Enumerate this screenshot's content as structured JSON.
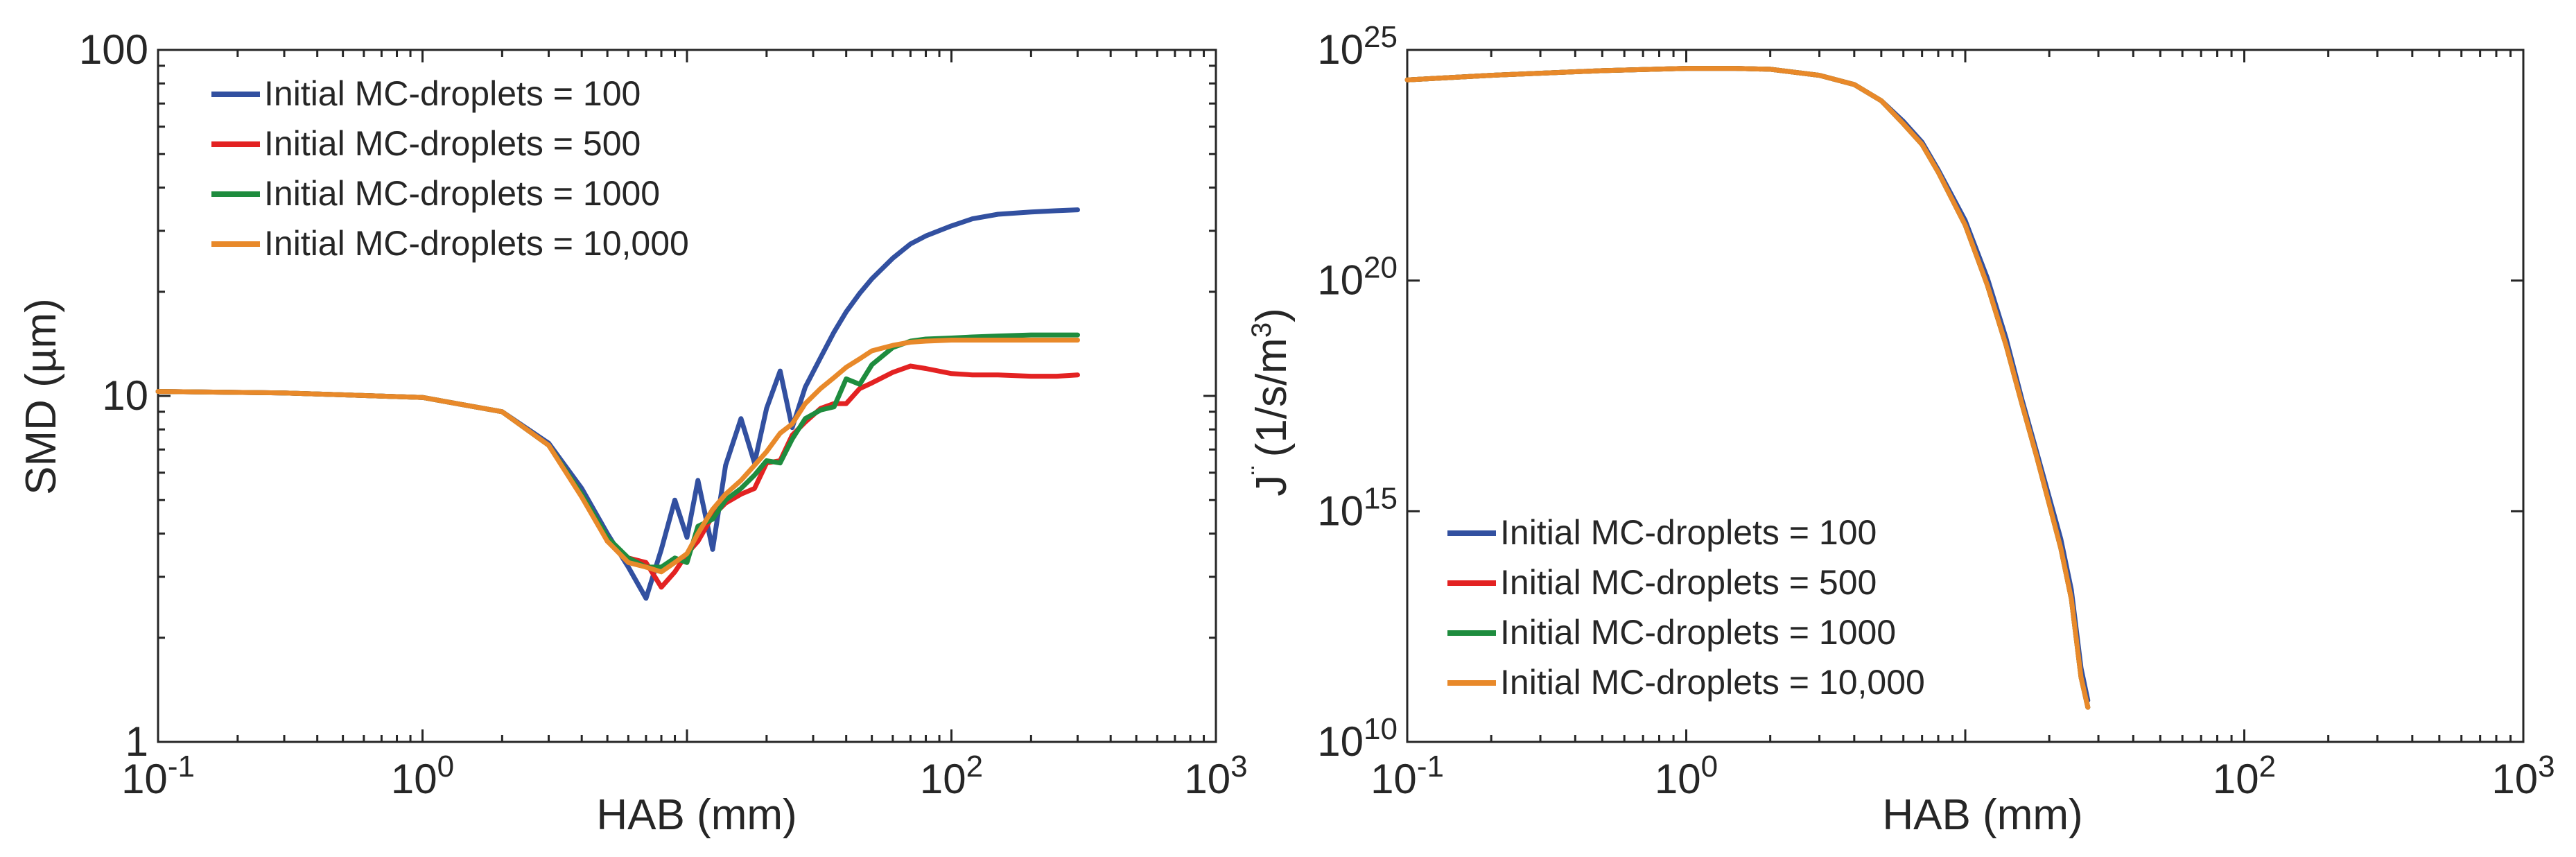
{
  "chart_data": [
    {
      "type": "line",
      "panel": "left",
      "xscale": "log",
      "yscale": "log",
      "xlim": [
        0.1,
        1000
      ],
      "ylim": [
        1,
        100
      ],
      "xlabel": "HAB (mm)",
      "ylabel": "SMD (µm)",
      "xticks": [
        {
          "value": 0.1,
          "base": "10",
          "exp": "-1"
        },
        {
          "value": 1,
          "base": "10",
          "exp": "0"
        },
        {
          "value": 100,
          "base": "10",
          "exp": "2"
        },
        {
          "value": 1000,
          "base": "10",
          "exp": "3"
        }
      ],
      "yticks": [
        {
          "value": 1,
          "label": "1"
        },
        {
          "value": 10,
          "label": "10"
        },
        {
          "value": 100,
          "label": "100"
        }
      ],
      "legend_position": "top-left",
      "series": [
        {
          "name": "Initial MC-droplets = 100",
          "color": "#3250a0",
          "x": [
            0.1,
            0.3,
            1,
            2,
            3,
            4,
            5,
            6,
            7,
            8,
            9,
            10,
            11,
            12.5,
            14,
            16,
            18,
            20,
            22.5,
            25,
            28,
            32,
            36,
            40,
            45,
            50,
            60,
            70,
            80,
            100,
            120,
            150,
            200,
            250,
            300
          ],
          "y": [
            10.3,
            10.2,
            9.9,
            9.0,
            7.3,
            5.4,
            4.0,
            3.2,
            2.6,
            3.6,
            5.0,
            3.9,
            5.7,
            3.6,
            6.3,
            8.6,
            6.4,
            9.2,
            11.8,
            8.1,
            10.6,
            12.9,
            15.3,
            17.5,
            19.8,
            21.8,
            25.0,
            27.5,
            29.0,
            31.0,
            32.5,
            33.5,
            34.0,
            34.3,
            34.5
          ]
        },
        {
          "name": "Initial MC-droplets = 500",
          "color": "#e32222",
          "x": [
            0.1,
            0.3,
            1,
            2,
            3,
            4,
            5,
            6,
            7,
            8,
            9,
            10,
            11,
            12.5,
            14,
            16,
            18,
            20,
            22.5,
            25,
            28,
            32,
            36,
            40,
            45,
            50,
            60,
            70,
            80,
            100,
            120,
            150,
            200,
            250,
            300
          ],
          "y": [
            10.3,
            10.2,
            9.9,
            9.0,
            7.2,
            5.2,
            3.8,
            3.4,
            3.3,
            2.8,
            3.1,
            3.5,
            3.8,
            4.5,
            4.9,
            5.2,
            5.4,
            6.4,
            6.5,
            7.7,
            8.4,
            9.2,
            9.5,
            9.5,
            10.5,
            10.9,
            11.7,
            12.2,
            12.0,
            11.6,
            11.5,
            11.5,
            11.4,
            11.4,
            11.5
          ]
        },
        {
          "name": "Initial MC-droplets = 1000",
          "color": "#1e8c3e",
          "x": [
            0.1,
            0.3,
            1,
            2,
            3,
            4,
            5,
            6,
            7,
            8,
            9,
            10,
            11,
            12.5,
            14,
            16,
            18,
            20,
            22.5,
            25,
            28,
            32,
            36,
            40,
            45,
            50,
            60,
            70,
            80,
            100,
            120,
            150,
            200,
            250,
            300
          ],
          "y": [
            10.3,
            10.2,
            9.9,
            9.0,
            7.2,
            5.2,
            3.9,
            3.4,
            3.2,
            3.2,
            3.4,
            3.3,
            4.2,
            4.4,
            5.0,
            5.4,
            5.9,
            6.5,
            6.4,
            7.5,
            8.6,
            9.1,
            9.3,
            11.2,
            10.8,
            12.3,
            13.8,
            14.4,
            14.6,
            14.7,
            14.8,
            14.9,
            15.0,
            15.0,
            15.0
          ]
        },
        {
          "name": "Initial MC-droplets = 10,000",
          "color": "#e8892a",
          "x": [
            0.1,
            0.3,
            1,
            2,
            3,
            4,
            5,
            6,
            7,
            8,
            9,
            10,
            11,
            12.5,
            14,
            16,
            18,
            20,
            22.5,
            25,
            28,
            32,
            36,
            40,
            45,
            50,
            60,
            70,
            80,
            100,
            120,
            150,
            200,
            250,
            300
          ],
          "y": [
            10.3,
            10.2,
            9.9,
            9.0,
            7.2,
            5.1,
            3.8,
            3.3,
            3.2,
            3.1,
            3.3,
            3.5,
            4.0,
            4.7,
            5.2,
            5.7,
            6.3,
            6.9,
            7.8,
            8.3,
            9.5,
            10.5,
            11.3,
            12.1,
            12.8,
            13.5,
            14.0,
            14.3,
            14.4,
            14.5,
            14.5,
            14.5,
            14.5,
            14.5,
            14.5
          ]
        }
      ]
    },
    {
      "type": "line",
      "panel": "right",
      "xscale": "log",
      "yscale": "log",
      "xlim": [
        0.1,
        1000
      ],
      "ylim": [
        10000000000.0,
        1e+25
      ],
      "xlabel": "HAB (mm)",
      "ylabel_base": "J",
      "ylabel_dots": "¨",
      "ylabel_units": "(1/s/m",
      "ylabel_units_exp": "3",
      "ylabel_units_close": ")",
      "xticks": [
        {
          "value": 0.1,
          "base": "10",
          "exp": "-1"
        },
        {
          "value": 1,
          "base": "10",
          "exp": "0"
        },
        {
          "value": 100,
          "base": "10",
          "exp": "2"
        },
        {
          "value": 1000,
          "base": "10",
          "exp": "3"
        }
      ],
      "yticks": [
        {
          "value": 10000000000.0,
          "base": "10",
          "exp": "10"
        },
        {
          "value": 1000000000000000.0,
          "base": "10",
          "exp": "15"
        },
        {
          "value": 1e+20,
          "base": "10",
          "exp": "20"
        },
        {
          "value": 1e+25,
          "base": "10",
          "exp": "25"
        }
      ],
      "legend_position": "bottom-left",
      "series": [
        {
          "name": "Initial MC-droplets = 100",
          "color": "#3250a0",
          "x": [
            0.1,
            0.2,
            0.5,
            1,
            1.5,
            2,
            3,
            4,
            5,
            6,
            7,
            8,
            10,
            12,
            14,
            16,
            18,
            20,
            22,
            24,
            26,
            27.5
          ],
          "y": [
            24.35,
            24.45,
            24.55,
            24.6,
            24.6,
            24.58,
            24.45,
            24.25,
            23.9,
            23.45,
            23.0,
            22.4,
            21.3,
            20.05,
            18.75,
            17.4,
            16.3,
            15.3,
            14.4,
            13.3,
            11.6,
            10.9
          ]
        },
        {
          "name": "Initial MC-droplets = 500",
          "color": "#e32222",
          "x": [
            0.1,
            0.2,
            0.5,
            1,
            1.5,
            2,
            3,
            4,
            5,
            6,
            7,
            8,
            10,
            12,
            14,
            16,
            18,
            20,
            22,
            24,
            26,
            27.5
          ],
          "y": [
            24.35,
            24.45,
            24.55,
            24.6,
            24.6,
            24.58,
            24.45,
            24.25,
            23.9,
            23.4,
            22.95,
            22.35,
            21.2,
            19.9,
            18.6,
            17.3,
            16.2,
            15.15,
            14.2,
            13.1,
            11.4,
            10.75
          ]
        },
        {
          "name": "Initial MC-droplets = 1000",
          "color": "#1e8c3e",
          "x": [
            0.1,
            0.2,
            0.5,
            1,
            1.5,
            2,
            3,
            4,
            5,
            6,
            7,
            8,
            10,
            12,
            14,
            16,
            18,
            20,
            22,
            24,
            26,
            27.5
          ],
          "y": [
            24.35,
            24.45,
            24.55,
            24.6,
            24.6,
            24.58,
            24.45,
            24.25,
            23.9,
            23.4,
            22.95,
            22.35,
            21.2,
            19.9,
            18.6,
            17.3,
            16.2,
            15.15,
            14.2,
            13.1,
            11.4,
            10.75
          ]
        },
        {
          "name": "Initial MC-droplets = 10,000",
          "color": "#e8892a",
          "x": [
            0.1,
            0.2,
            0.5,
            1,
            1.5,
            2,
            3,
            4,
            5,
            6,
            7,
            8,
            10,
            12,
            14,
            16,
            18,
            20,
            22,
            24,
            26,
            27.5
          ],
          "y": [
            24.35,
            24.45,
            24.55,
            24.6,
            24.6,
            24.58,
            24.45,
            24.25,
            23.9,
            23.4,
            22.95,
            22.35,
            21.2,
            19.9,
            18.6,
            17.3,
            16.2,
            15.15,
            14.2,
            13.1,
            11.4,
            10.75
          ]
        }
      ]
    }
  ]
}
